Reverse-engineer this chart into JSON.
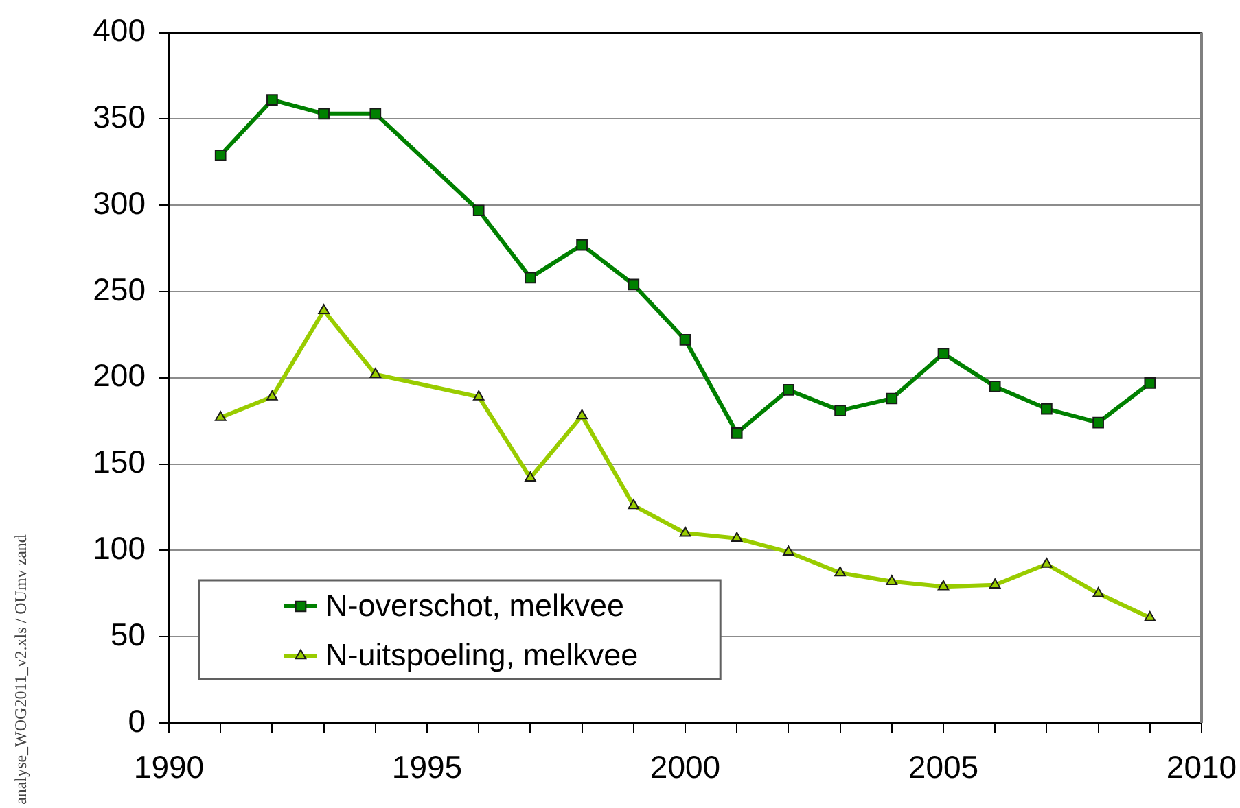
{
  "chart_data": {
    "type": "line",
    "x": [
      1991,
      1992,
      1993,
      1994,
      1996,
      1997,
      1998,
      1999,
      2000,
      2001,
      2002,
      2003,
      2004,
      2005,
      2006,
      2007,
      2008,
      2009
    ],
    "series": [
      {
        "name": "N-overschot, melkvee",
        "color": "#008000",
        "marker": "square",
        "values": [
          329,
          361,
          353,
          353,
          297,
          258,
          277,
          254,
          222,
          168,
          193,
          181,
          188,
          214,
          195,
          182,
          174,
          197
        ]
      },
      {
        "name": "N-uitspoeling, melkvee",
        "color": "#99cc00",
        "marker": "triangle",
        "values": [
          177,
          189,
          239,
          202,
          189,
          142,
          178,
          126,
          110,
          107,
          99,
          87,
          82,
          79,
          80,
          92,
          75,
          61
        ]
      }
    ],
    "xlim": [
      1990,
      2010
    ],
    "xticks": [
      1990,
      {
        "value": 1991,
        "label": null
      },
      {
        "value": 1992,
        "label": null
      },
      {
        "value": 1993,
        "label": null
      },
      {
        "value": 1994,
        "label": null
      },
      1995,
      {
        "value": 1996,
        "label": null
      },
      {
        "value": 1997,
        "label": null
      },
      {
        "value": 1998,
        "label": null
      },
      {
        "value": 1999,
        "label": null
      },
      2000,
      {
        "value": 2001,
        "label": null
      },
      {
        "value": 2002,
        "label": null
      },
      {
        "value": 2003,
        "label": null
      },
      {
        "value": 2004,
        "label": null
      },
      2005,
      {
        "value": 2006,
        "label": null
      },
      {
        "value": 2007,
        "label": null
      },
      {
        "value": 2008,
        "label": null
      },
      {
        "value": 2009,
        "label": null
      },
      2010
    ],
    "ylim": [
      0,
      400
    ],
    "yticks": [
      0,
      50,
      100,
      150,
      200,
      250,
      300,
      350,
      400
    ],
    "grid": "y",
    "legend": "bottom left",
    "line_style": "solid",
    "annotations": [
      "analyse_WOG2011_v2.xls / OUmv zand"
    ]
  }
}
